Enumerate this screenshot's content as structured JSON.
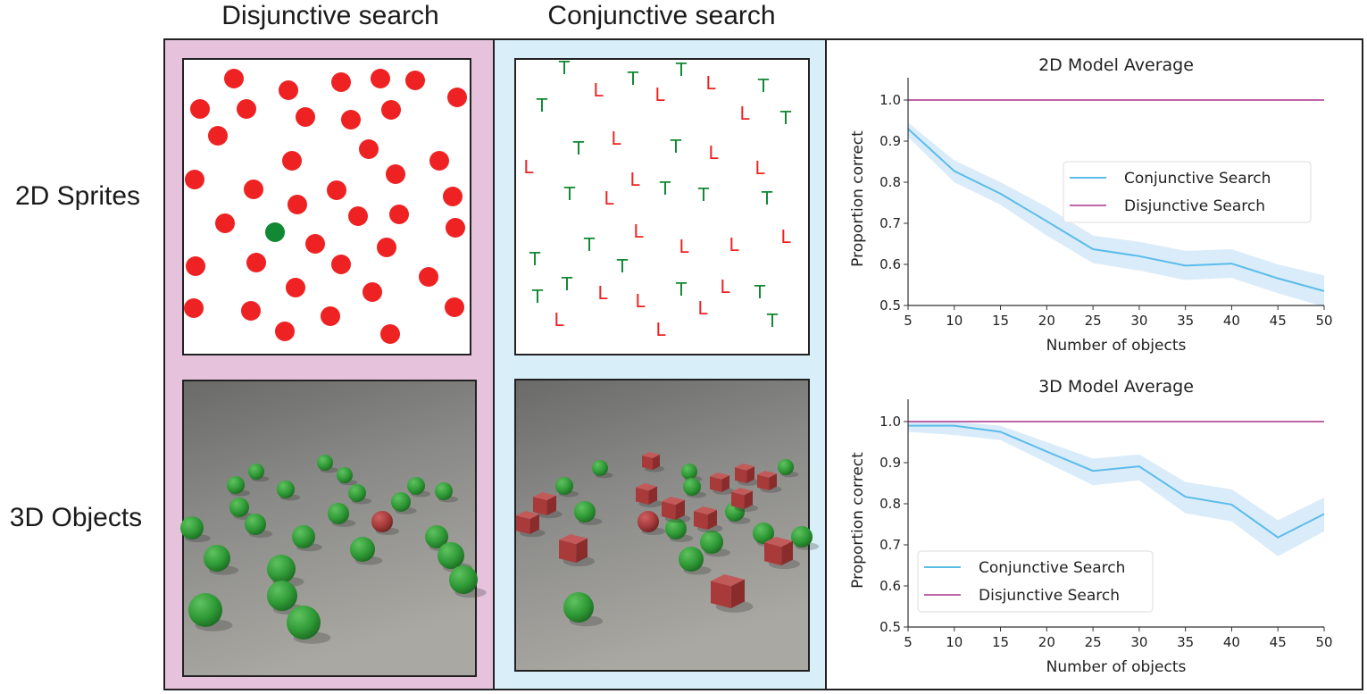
{
  "column_titles": {
    "disjunctive": "Disjunctive search",
    "conjunctive": "Conjunctive search"
  },
  "row_labels": {
    "sprites": "2D Sprites",
    "objects": "3D Objects"
  },
  "sprite_letters": {
    "target": "T",
    "distractor": "L"
  },
  "colors": {
    "disjunctive_panel": "#e6c2dd",
    "conjunctive_panel": "#d8eef9",
    "conjunctive_line": "#5bbcea",
    "conjunctive_band": "#d6eaf8",
    "disjunctive_line": "#c064a8",
    "sprite_red": "#ee2222",
    "sprite_green": "#118833"
  },
  "chart_data": [
    {
      "type": "line",
      "title": "2D Model Average",
      "xlabel": "Number of objects",
      "ylabel": "Proportion correct",
      "x": [
        5,
        10,
        15,
        20,
        25,
        30,
        35,
        40,
        45,
        50
      ],
      "xticks": [
        "5",
        "10",
        "15",
        "20",
        "25",
        "30",
        "35",
        "40",
        "45",
        "50"
      ],
      "yticks": [
        "0.5",
        "0.6",
        "0.7",
        "0.8",
        "0.9",
        "1.0"
      ],
      "xlim": [
        5,
        50
      ],
      "ylim": [
        0.5,
        1.05
      ],
      "legend": "center-right",
      "series": [
        {
          "name": "Conjunctive Search",
          "values": [
            0.93,
            0.827,
            0.772,
            0.705,
            0.637,
            0.62,
            0.597,
            0.602,
            0.566,
            0.535
          ],
          "ci_low": [
            0.91,
            0.8,
            0.745,
            0.67,
            0.603,
            0.585,
            0.562,
            0.567,
            0.53,
            0.497
          ],
          "ci_high": [
            0.945,
            0.853,
            0.8,
            0.74,
            0.67,
            0.655,
            0.633,
            0.637,
            0.6,
            0.573
          ]
        },
        {
          "name": "Disjunctive Search",
          "values": [
            1,
            1,
            1,
            1,
            1,
            1,
            1,
            1,
            1,
            1
          ]
        }
      ]
    },
    {
      "type": "line",
      "title": "3D Model Average",
      "xlabel": "Number of objects",
      "ylabel": "Proportion correct",
      "x": [
        5,
        10,
        15,
        20,
        25,
        30,
        35,
        40,
        45,
        50
      ],
      "xticks": [
        "5",
        "10",
        "15",
        "20",
        "25",
        "30",
        "35",
        "40",
        "45",
        "50"
      ],
      "yticks": [
        "0.5",
        "0.6",
        "0.7",
        "0.8",
        "0.9",
        "1.0"
      ],
      "xlim": [
        5,
        50
      ],
      "ylim": [
        0.5,
        1.05
      ],
      "legend": "lower-left",
      "series": [
        {
          "name": "Conjunctive Search",
          "values": [
            0.99,
            0.99,
            0.975,
            0.927,
            0.88,
            0.891,
            0.817,
            0.798,
            0.718,
            0.775
          ],
          "ci_low": [
            0.975,
            0.967,
            0.955,
            0.9,
            0.845,
            0.857,
            0.777,
            0.757,
            0.672,
            0.733
          ],
          "ci_high": [
            1.0,
            1.0,
            0.99,
            0.95,
            0.91,
            0.92,
            0.853,
            0.835,
            0.76,
            0.815
          ]
        },
        {
          "name": "Disjunctive Search",
          "values": [
            1,
            1,
            1,
            1,
            1,
            1,
            1,
            1,
            1,
            1
          ]
        }
      ]
    }
  ]
}
